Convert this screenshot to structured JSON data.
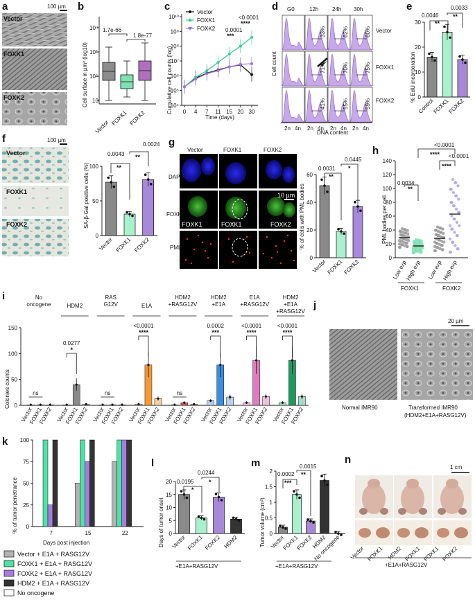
{
  "panels": {
    "a": {
      "letter": "a",
      "scale": "100 µm",
      "rows": [
        "Vector",
        "FOXK1",
        "FOXK2"
      ]
    },
    "b": {
      "letter": "b",
      "ylabel": "Cell surface in µm² (log10)",
      "ticks": [
        "10⁴",
        "10³",
        "10²",
        "10"
      ],
      "cats": [
        "Vector",
        "FOXK1",
        "FOXK2"
      ],
      "p1": "1.7e-66",
      "p2": "1.8e-77"
    },
    "c": {
      "letter": "c",
      "ylabel": "Cumulative cell counts (log)",
      "xlabel": "Time (days)",
      "legend": [
        "Vector",
        "FOXK1",
        "FOXK2"
      ],
      "p1": "0.0001",
      "p2": "<0.0001",
      "s1": "***",
      "s2": "****"
    },
    "d": {
      "letter": "d",
      "cols": [
        "G0",
        "12h",
        "24h",
        "30h"
      ],
      "rows": [
        "Vector",
        "FOXK1",
        "FOXK2"
      ],
      "ylabel": "Cell count",
      "xlabel": "DNA content",
      "pct": [
        [
          "33%",
          "62%",
          "60%"
        ],
        [
          "71%",
          "70%",
          "75%"
        ],
        [
          "41%",
          "55%",
          "59%"
        ]
      ]
    },
    "e": {
      "letter": "e",
      "ylabel": "% EdU incorporation",
      "cats": [
        "Control",
        "FOXK1",
        "FOXK2"
      ],
      "p1": "0.0046",
      "p2": "0.0033"
    },
    "f": {
      "letter": "f",
      "scale": "100 µm",
      "rows": [
        "Vector",
        "FOXK1",
        "FOXK2"
      ],
      "ylabel": "SA-β-Gal positive cells (%)",
      "cats": [
        "Vector",
        "FOXK1",
        "FOXK2"
      ],
      "p1": "0.0043",
      "p2": "0.0024"
    },
    "g": {
      "letter": "g",
      "cols": [
        "Vector",
        "FOXK1",
        "FOXK2"
      ],
      "rows": [
        "DAPI",
        "FOXK1/2",
        "PML"
      ],
      "scale": "10 µm",
      "ylabel": "% of cells with PML bodies",
      "cats": [
        "Vector",
        "FOXK1",
        "FOXK2"
      ],
      "p1": "0.0031",
      "p2": "0.0445"
    },
    "h": {
      "letter": "h",
      "ylabel": "PML bodies per cell",
      "cats": [
        "Low exp",
        "High exp",
        "Low exp",
        "High exp"
      ],
      "groups": [
        "FOXK1",
        "FOXK2"
      ],
      "p1": "0.0034",
      "p2": "<0.0001",
      "p3": "<0.0001"
    },
    "i": {
      "letter": "i",
      "ylabel": "Colonies counts",
      "groups": [
        "No oncogene",
        "HDM2",
        "RASG12V",
        "E1A",
        "HDM2 +RASG12V",
        "HDM2 +E1A",
        "E1A +RASG12V",
        "HDM2 +E1A +RASG12V"
      ],
      "pvals": [
        "0.0277",
        "<0.0001",
        "0.0002",
        "<0.0001",
        "<0.0001"
      ],
      "cats": [
        "Vector",
        "FOXK1",
        "FOXK2"
      ]
    },
    "j": {
      "letter": "j",
      "scale": "20 µm",
      "left": "Normal IMR90",
      "right": "Transformed IMR90",
      "right2": "(HDM2+E1A+RASG12V)"
    },
    "k": {
      "letter": "k",
      "ylabel": "% of tumor penetrance",
      "xlabel": "Days post injection",
      "legend": [
        "Vector + E1A + RASG12V",
        "FOXK1 + E1A + RASG12V",
        "FOXK2 + E1A + RASG12V",
        "HDM2 + E1A + RASG12V",
        "No oncogene"
      ]
    },
    "l": {
      "letter": "l",
      "ylabel": "Days of tumor onset",
      "cats": [
        "Vector",
        "FOXK1",
        "FOXK2",
        "HDM2"
      ],
      "footer": "+E1A+RASG12V",
      "p1": "0.0195",
      "p2": "0.0244"
    },
    "m": {
      "letter": "m",
      "ylabel": "Tumor volume (cm³)",
      "cats": [
        "Vector",
        "FOXK1",
        "FOXK2",
        "HDM2",
        "No oncogene"
      ],
      "footer": "+E1A+RASG12V",
      "p1": "0.0002",
      "p2": "0.0015"
    },
    "n": {
      "letter": "n",
      "scale": "1 cm",
      "labels": [
        "Vector",
        "FOXK1",
        "HDM2",
        "FOXK1",
        "FOXK1",
        "FOXK2"
      ],
      "footer": "+E1A+RASG12V"
    }
  },
  "chart_data": [
    {
      "panel": "b",
      "type": "box",
      "categories": [
        "Vector",
        "FOXK1",
        "FOXK2"
      ],
      "colors": [
        "#8c8c8c",
        "#7fe0b0",
        "#b070c0"
      ],
      "yscale": "log"
    },
    {
      "panel": "c",
      "type": "line",
      "x": [
        0,
        4,
        7,
        11,
        15,
        20,
        30
      ],
      "yscale": "log",
      "ylim": [
        10000,
        10000000000
      ],
      "series": [
        {
          "name": "Vector",
          "color": "#111111",
          "values": [
            180000,
            700000,
            1500000,
            2500000,
            4000000,
            5500000,
            1200000
          ]
        },
        {
          "name": "FOXK1",
          "color": "#3dcb92",
          "values": [
            180000,
            800000,
            2200000,
            8000000,
            30000000,
            100000000,
            400000000
          ]
        },
        {
          "name": "FOXK2",
          "color": "#9a78d6",
          "values": [
            180000,
            600000,
            1400000,
            2200000,
            4000000,
            6000000,
            6500000
          ]
        }
      ]
    },
    {
      "panel": "e",
      "type": "bar",
      "categories": [
        "Control",
        "FOXK1",
        "FOXK2"
      ],
      "values": [
        16,
        26,
        15
      ],
      "ylim": [
        0,
        30
      ]
    },
    {
      "panel": "f",
      "type": "bar",
      "categories": [
        "Vector",
        "FOXK1",
        "FOXK2"
      ],
      "values": [
        77,
        31,
        81
      ],
      "ylim": [
        0,
        100
      ]
    },
    {
      "panel": "g",
      "type": "bar",
      "categories": [
        "Vector",
        "FOXK1",
        "FOXK2"
      ],
      "values": [
        52,
        19,
        37
      ],
      "ylim": [
        0,
        60
      ]
    },
    {
      "panel": "h",
      "type": "scatter",
      "categories": [
        "Low exp",
        "High exp",
        "Low exp",
        "High exp"
      ],
      "means": [
        29,
        17,
        28,
        63
      ],
      "ylim": [
        0,
        140
      ]
    },
    {
      "panel": "i",
      "type": "bar",
      "groups": [
        "No oncogene",
        "HDM2",
        "RASG12V",
        "E1A",
        "HDM2 +RASG12V",
        "HDM2 +E1A",
        "E1A +RASG12V",
        "HDM2 +E1A +RASG12V"
      ],
      "series": [
        {
          "name": "Vector",
          "values": [
            1,
            1,
            1,
            2,
            1,
            9,
            5,
            5
          ]
        },
        {
          "name": "FOXK1",
          "values": [
            1,
            40,
            1,
            78,
            5,
            78,
            87,
            87
          ]
        },
        {
          "name": "FOXK2",
          "values": [
            1,
            2,
            1,
            13,
            2,
            16,
            17,
            17
          ]
        }
      ],
      "ylim": [
        0,
        150
      ]
    },
    {
      "panel": "k",
      "type": "bar",
      "categories": [
        "7",
        "15",
        "22"
      ],
      "series": [
        {
          "name": "Vector + E1A + RASG12V",
          "values": [
            0,
            50,
            75
          ]
        },
        {
          "name": "FOXK1 + E1A + RASG12V",
          "values": [
            100,
            100,
            100
          ]
        },
        {
          "name": "FOXK2 + E1A + RASG12V",
          "values": [
            25,
            75,
            100
          ]
        },
        {
          "name": "HDM2 + E1A + RASG12V",
          "values": [
            100,
            100,
            100
          ]
        },
        {
          "name": "No oncogene",
          "values": [
            0,
            0,
            0
          ]
        }
      ],
      "ylim": [
        0,
        100
      ]
    },
    {
      "panel": "l",
      "type": "bar",
      "categories": [
        "Vector",
        "FOXK1",
        "FOXK2",
        "HDM2"
      ],
      "values": [
        15,
        6,
        14,
        5.5
      ],
      "ylim": [
        0,
        20
      ]
    },
    {
      "panel": "m",
      "type": "bar",
      "categories": [
        "Vector",
        "FOXK1",
        "FOXK2",
        "HDM2",
        "No oncogene"
      ],
      "values": [
        0.2,
        1.25,
        0.4,
        1.7,
        0
      ],
      "ylim": [
        0,
        2.0
      ]
    }
  ]
}
